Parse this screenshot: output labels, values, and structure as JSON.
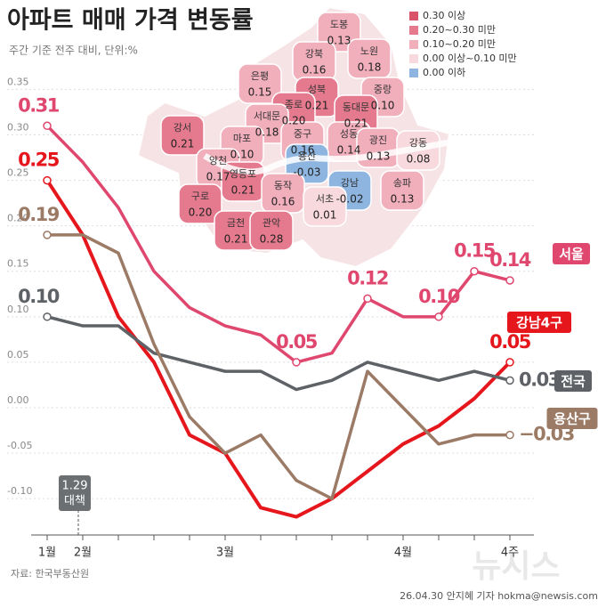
{
  "title": "아파트 매매 가격 변동률",
  "subtitle": "주간 기준 전주 대비, 단위:%",
  "source": "자료: 한국부동산원",
  "credit": "26.04.30 안지혜 기자 hokma@newsis.com",
  "watermark": "뉴시스",
  "chart_data": {
    "type": "line",
    "categories": [
      "1월",
      "2월",
      null,
      null,
      null,
      "3월",
      null,
      null,
      null,
      null,
      "4월",
      null,
      null,
      "4주"
    ],
    "series": [
      {
        "name": "서울",
        "color": "#e0476f",
        "values": [
          0.31,
          0.27,
          0.22,
          0.15,
          0.11,
          0.09,
          0.08,
          0.05,
          0.06,
          0.12,
          0.1,
          0.1,
          0.15,
          0.14
        ],
        "value_labels": [
          "0.31",
          null,
          null,
          null,
          null,
          null,
          null,
          "0.05",
          null,
          "0.12",
          null,
          "0.10",
          "0.15",
          "0.14"
        ]
      },
      {
        "name": "강남4구",
        "color": "#e5161c",
        "values": [
          0.25,
          0.19,
          0.1,
          0.05,
          -0.03,
          -0.05,
          -0.11,
          -0.12,
          -0.1,
          -0.07,
          -0.04,
          -0.02,
          0.01,
          0.05
        ],
        "value_labels": [
          "0.25",
          null,
          null,
          null,
          null,
          null,
          null,
          null,
          null,
          null,
          null,
          null,
          null,
          "0.05"
        ]
      },
      {
        "name": "전국",
        "color": "#5e6266",
        "values": [
          0.1,
          0.09,
          0.09,
          0.06,
          0.05,
          0.04,
          0.04,
          0.02,
          0.03,
          0.05,
          0.04,
          0.03,
          0.04,
          0.03
        ],
        "value_labels": [
          "0.10",
          null,
          null,
          null,
          null,
          null,
          null,
          null,
          null,
          null,
          null,
          null,
          null,
          "0.03"
        ]
      },
      {
        "name": "용산구",
        "color": "#9b7a66",
        "values": [
          0.19,
          0.19,
          0.17,
          0.07,
          -0.01,
          -0.05,
          -0.03,
          -0.08,
          -0.1,
          0.04,
          0.0,
          -0.04,
          -0.03,
          -0.03
        ],
        "value_labels": [
          "0.19",
          null,
          null,
          null,
          null,
          null,
          null,
          null,
          null,
          null,
          null,
          null,
          null,
          "−0.03"
        ]
      }
    ],
    "ylim": [
      -0.14,
      0.37
    ],
    "yticks": [
      0.35,
      {
        "value": 0.3,
        "label": "0.30"
      },
      0.25,
      {
        "value": 0.2,
        "label": "0.20"
      },
      0.15,
      {
        "value": 0.1,
        "label": "0.10"
      },
      0.05,
      {
        "value": 0.0,
        "label": "0.00"
      },
      -0.05,
      {
        "value": -0.1,
        "label": "-0.10"
      }
    ],
    "grid": true,
    "annotation": [
      "1.29",
      "대책"
    ]
  },
  "map": {
    "legend": [
      {
        "label": "0.30 이상",
        "color": "#d9536a"
      },
      {
        "label": "0.20~0.30 미만",
        "color": "#e57a8e"
      },
      {
        "label": "0.10~0.20 미만",
        "color": "#f1aebb"
      },
      {
        "label": "0.00 이상~0.10 미만",
        "color": "#f7d9de"
      },
      {
        "label": "0.00 이하",
        "color": "#8db5e0"
      }
    ],
    "districts": [
      {
        "name": "도봉",
        "value": "0.13",
        "color": "#f1aebb"
      },
      {
        "name": "노원",
        "value": "0.18",
        "color": "#f1aebb"
      },
      {
        "name": "강북",
        "value": "0.16",
        "color": "#f1aebb"
      },
      {
        "name": "은평",
        "value": "0.15",
        "color": "#f1aebb"
      },
      {
        "name": "성북",
        "value": "0.21",
        "color": "#e57a8e"
      },
      {
        "name": "중랑",
        "value": "0.10",
        "color": "#f1aebb"
      },
      {
        "name": "종로",
        "value": "0.20",
        "color": "#e57a8e"
      },
      {
        "name": "동대문",
        "value": "0.21",
        "color": "#e57a8e"
      },
      {
        "name": "강서",
        "value": "0.21",
        "color": "#e57a8e"
      },
      {
        "name": "서대문",
        "value": "0.18",
        "color": "#f1aebb"
      },
      {
        "name": "마포",
        "value": "0.10",
        "color": "#f1aebb"
      },
      {
        "name": "중구",
        "value": "0.16",
        "color": "#f1aebb"
      },
      {
        "name": "성동",
        "value": "0.14",
        "color": "#f1aebb"
      },
      {
        "name": "광진",
        "value": "0.13",
        "color": "#f1aebb"
      },
      {
        "name": "강동",
        "value": "0.08",
        "color": "#f7d9de"
      },
      {
        "name": "양천",
        "value": "0.17",
        "color": "#f1aebb"
      },
      {
        "name": "용산",
        "value": "-0.03",
        "color": "#8db5e0"
      },
      {
        "name": "영등포",
        "value": "0.21",
        "color": "#e57a8e"
      },
      {
        "name": "구로",
        "value": "0.20",
        "color": "#e57a8e"
      },
      {
        "name": "동작",
        "value": "0.16",
        "color": "#f1aebb"
      },
      {
        "name": "강남",
        "value": "-0.02",
        "color": "#8db5e0"
      },
      {
        "name": "송파",
        "value": "0.13",
        "color": "#f1aebb"
      },
      {
        "name": "서초",
        "value": "0.01",
        "color": "#f7d9de"
      },
      {
        "name": "금천",
        "value": "0.21",
        "color": "#e57a8e"
      },
      {
        "name": "관악",
        "value": "0.28",
        "color": "#e57a8e"
      }
    ]
  }
}
